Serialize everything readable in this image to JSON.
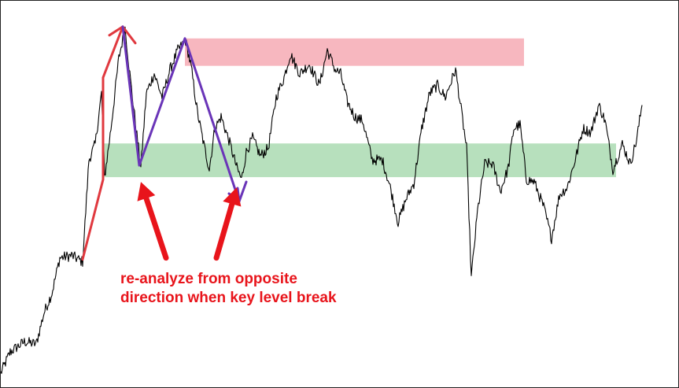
{
  "chart_data": {
    "type": "line",
    "title": "",
    "xlabel": "",
    "ylabel": "",
    "grid": false,
    "legend": "none",
    "x_count": 820,
    "ylim": [
      0,
      493
    ],
    "colors": {
      "price": "#000000",
      "supply_zone": "#f7b7bf",
      "demand_zone": "#b7e0bd",
      "impulse_legs": "#e0393f",
      "analysis_legs": "#6a35b8",
      "annotation": "#e8141b",
      "arrows": "#e8141b"
    },
    "price_path": [
      [
        0,
        18
      ],
      [
        12,
        45
      ],
      [
        30,
        58
      ],
      [
        45,
        55
      ],
      [
        55,
        95
      ],
      [
        65,
        120
      ],
      [
        75,
        165
      ],
      [
        90,
        168
      ],
      [
        104,
        160
      ],
      [
        112,
        290
      ],
      [
        120,
        310
      ],
      [
        128,
        375
      ],
      [
        132,
        268
      ],
      [
        140,
        330
      ],
      [
        150,
        420
      ],
      [
        158,
        458
      ],
      [
        165,
        390
      ],
      [
        172,
        330
      ],
      [
        178,
        280
      ],
      [
        185,
        375
      ],
      [
        195,
        400
      ],
      [
        205,
        370
      ],
      [
        215,
        405
      ],
      [
        225,
        430
      ],
      [
        235,
        442
      ],
      [
        242,
        408
      ],
      [
        250,
        350
      ],
      [
        258,
        310
      ],
      [
        265,
        278
      ],
      [
        272,
        330
      ],
      [
        280,
        345
      ],
      [
        290,
        315
      ],
      [
        300,
        280
      ],
      [
        306,
        265
      ],
      [
        312,
        300
      ],
      [
        320,
        318
      ],
      [
        330,
        295
      ],
      [
        340,
        305
      ],
      [
        350,
        370
      ],
      [
        360,
        395
      ],
      [
        368,
        425
      ],
      [
        380,
        400
      ],
      [
        392,
        412
      ],
      [
        405,
        385
      ],
      [
        415,
        430
      ],
      [
        425,
        405
      ],
      [
        432,
        400
      ],
      [
        440,
        365
      ],
      [
        450,
        345
      ],
      [
        460,
        340
      ],
      [
        472,
        290
      ],
      [
        485,
        290
      ],
      [
        495,
        255
      ],
      [
        505,
        210
      ],
      [
        515,
        240
      ],
      [
        525,
        260
      ],
      [
        535,
        330
      ],
      [
        545,
        375
      ],
      [
        555,
        385
      ],
      [
        565,
        370
      ],
      [
        578,
        405
      ],
      [
        585,
        355
      ],
      [
        592,
        305
      ],
      [
        598,
        140
      ],
      [
        606,
        225
      ],
      [
        615,
        285
      ],
      [
        625,
        285
      ],
      [
        635,
        250
      ],
      [
        645,
        280
      ],
      [
        652,
        330
      ],
      [
        660,
        335
      ],
      [
        668,
        265
      ],
      [
        678,
        262
      ],
      [
        690,
        230
      ],
      [
        700,
        190
      ],
      [
        710,
        245
      ],
      [
        720,
        255
      ],
      [
        730,
        290
      ],
      [
        740,
        330
      ],
      [
        750,
        325
      ],
      [
        760,
        360
      ],
      [
        768,
        340
      ],
      [
        778,
        278
      ],
      [
        790,
        310
      ],
      [
        800,
        285
      ],
      [
        808,
        315
      ],
      [
        815,
        360
      ]
    ],
    "zones": [
      {
        "name": "supply",
        "x_start": 234,
        "x_end": 665,
        "y_low": 410,
        "y_high": 445
      },
      {
        "name": "demand",
        "x_start": 130,
        "x_end": 782,
        "y_low": 268,
        "y_high": 311
      }
    ],
    "impulse_legs": [
      [
        104,
        163
      ],
      [
        130,
        265
      ],
      [
        130,
        395
      ],
      [
        155,
        460
      ]
    ],
    "impulse_arrowhead": [
      [
        138,
        449
      ],
      [
        155,
        460
      ],
      [
        171,
        439
      ]
    ],
    "analysis_legs": [
      [
        155,
        460
      ],
      [
        176,
        283
      ],
      [
        234,
        445
      ],
      [
        303,
        237
      ],
      [
        312,
        262
      ]
    ],
    "analysis_arrowhead": [
      [
        290,
        247
      ],
      [
        303,
        237
      ],
      [
        301,
        254
      ]
    ],
    "pointer_arrows": [
      {
        "from": [
          210,
          165
        ],
        "to": [
          178,
          262
        ]
      },
      {
        "from": [
          274,
          165
        ],
        "to": [
          300,
          255
        ]
      }
    ]
  },
  "annotation": {
    "line1": "re-analyze from opposite",
    "line2": "direction when key level break"
  }
}
